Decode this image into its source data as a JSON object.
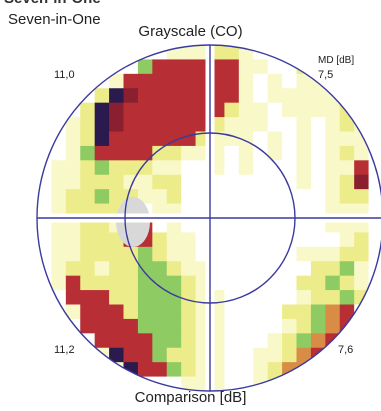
{
  "header": {
    "title": "Seven-in-One",
    "subtitle": "Grayscale (CO)",
    "bottom_title": "Comparison [dB]"
  },
  "chart_data": {
    "type": "heatmap",
    "title": "Grayscale (CO)",
    "unit_label": "MD [dB]",
    "quadrant_md": {
      "top_left": "11,0",
      "top_right": "7,5",
      "bottom_left": "11,2",
      "bottom_right": "7,6"
    },
    "grid_cols": 24,
    "grid_rows": 24,
    "palette": {
      "W": "#ffffff",
      "L": "#f8f8c9",
      "Y": "#ecec8a",
      "G": "#8fcb63",
      "O": "#d98c45",
      "R": "#b72f35",
      "D": "#8a1f2f",
      "N": "#2b1a4d"
    },
    "colors": {
      "circle": "#3b3b9e",
      "crosshair": "#3b3b9e",
      "blind_spot": "#d8d8d8"
    },
    "rows": [
      "WWWWWWWWWLLLYYLWWWWWWWWW",
      "WWWWWWWGRRRRRRLLWWYLWWWW",
      "WWWWWLRRRRRRRRLWLWLLWWWW",
      "WWWWYNDRRRRRRRLWLLLLLYWW",
      "WWWYNDRRRRRRRYLLWLLLLYGW",
      "WWLYNDRRRRRRYLLLWWLWLYLW",
      "WWLYNRRRRRRYLLLWLWLWLLLW",
      "WWLGRRRRYYLLLWLWLWLWLYLW",
      "WLLYGYYYLLWWLWLWWWLWLLRW",
      "WLLYYYLLYYWWWWWWWWLWLYDW",
      "WLYYGYYLLYWWWWWWWWWWLYYW",
      "WLYYYYWWLLWWWWWWWWWWLLLW",
      "WLLYYLWRWLWWWWWWWWWWLLLW",
      "WLLYYYRRYLLWWWWWWWWWWLYW",
      "WLLYYYYGYLLWWWWWWWLLLYYW",
      "WLYYLYYGGYLLWWWWWWWYYGLW",
      "WLRYYYYGGGYLWWWWWWYYGYLW",
      "WWRRRYYGGGYLLWWWWWLYYGYW",
      "WWLRRRYGGGYLLWWWWYYGORWW",
      "WWWRRRRGGGYLLWWWWLYGORWW",
      "WWWWRRRRGGYLLWWWLYGORDWW",
      "WWWWLNRRGYYLLWWLLYORDWWW",
      "WWWWWLNRRGYLLWWLYOODWWWW",
      "WWWWWWWWWWLLLWWLYWWWWWWW"
    ]
  }
}
